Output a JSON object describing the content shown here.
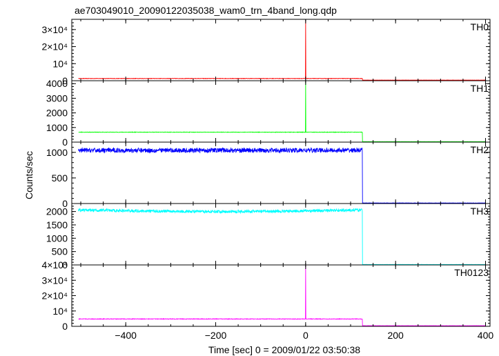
{
  "chart_data": {
    "type": "line",
    "title": "ae703049010_20090122035038_wam0_trn_4band_long.qdp",
    "xlabel": "Time [sec] 0 = 2009/01/22 03:50:38",
    "ylabel": "Counts/sec",
    "xlim": [
      -520,
      410
    ],
    "xticks": [
      -400,
      -200,
      0,
      200,
      400
    ],
    "xtick_labels": [
      "−400",
      "−200",
      "0",
      "200",
      "400"
    ],
    "panels": [
      {
        "name": "TH0",
        "color": "#ff0000",
        "ylim": [
          0,
          36000
        ],
        "yticks": [
          0,
          10000,
          20000,
          30000
        ],
        "ytick_labels": [
          "0",
          "10⁴",
          "2×10⁴",
          "3×10⁴"
        ],
        "pre_level": 1300,
        "pre_noise": 120,
        "spike_value": 35500,
        "post_level": 350,
        "post_noise": 60
      },
      {
        "name": "TH1",
        "color": "#00ff00",
        "ylim": [
          0,
          4200
        ],
        "yticks": [
          0,
          1000,
          2000,
          3000,
          4000
        ],
        "ytick_labels": [
          "0",
          "1000",
          "2000",
          "3000",
          "4000"
        ],
        "pre_level": 680,
        "pre_noise": 15,
        "spike_value": 4200,
        "post_level": 30,
        "post_noise": 5
      },
      {
        "name": "TH2",
        "color": "#0000ff",
        "ylim": [
          0,
          1200
        ],
        "yticks": [
          0,
          500,
          1000
        ],
        "ytick_labels": [
          "0",
          "500",
          "1000"
        ],
        "pre_level": 1040,
        "pre_noise": 45,
        "spike_value": null,
        "post_level": 10,
        "post_noise": 3
      },
      {
        "name": "TH3",
        "color": "#00ffff",
        "ylim": [
          0,
          2300
        ],
        "yticks": [
          0,
          500,
          1000,
          1500,
          2000
        ],
        "ytick_labels": [
          "0",
          "500",
          "1000",
          "1500",
          "2000"
        ],
        "pre_level": 2060,
        "pre_noise": 55,
        "spike_value": null,
        "post_level": 15,
        "post_noise": 4
      },
      {
        "name": "TH0123",
        "color": "#ff00ff",
        "ylim": [
          0,
          40000
        ],
        "yticks": [
          0,
          10000,
          20000,
          30000,
          40000
        ],
        "ytick_labels": [
          "0",
          "10⁴",
          "2×10⁴",
          "3×10⁴",
          "4×10⁴"
        ],
        "pre_level": 4800,
        "pre_noise": 180,
        "spike_value": 39500,
        "post_level": 400,
        "post_noise": 60
      }
    ],
    "x_start": -505,
    "x_spike": 0,
    "x_drop": 126,
    "x_end": 400,
    "grid": false,
    "legend": "none"
  }
}
